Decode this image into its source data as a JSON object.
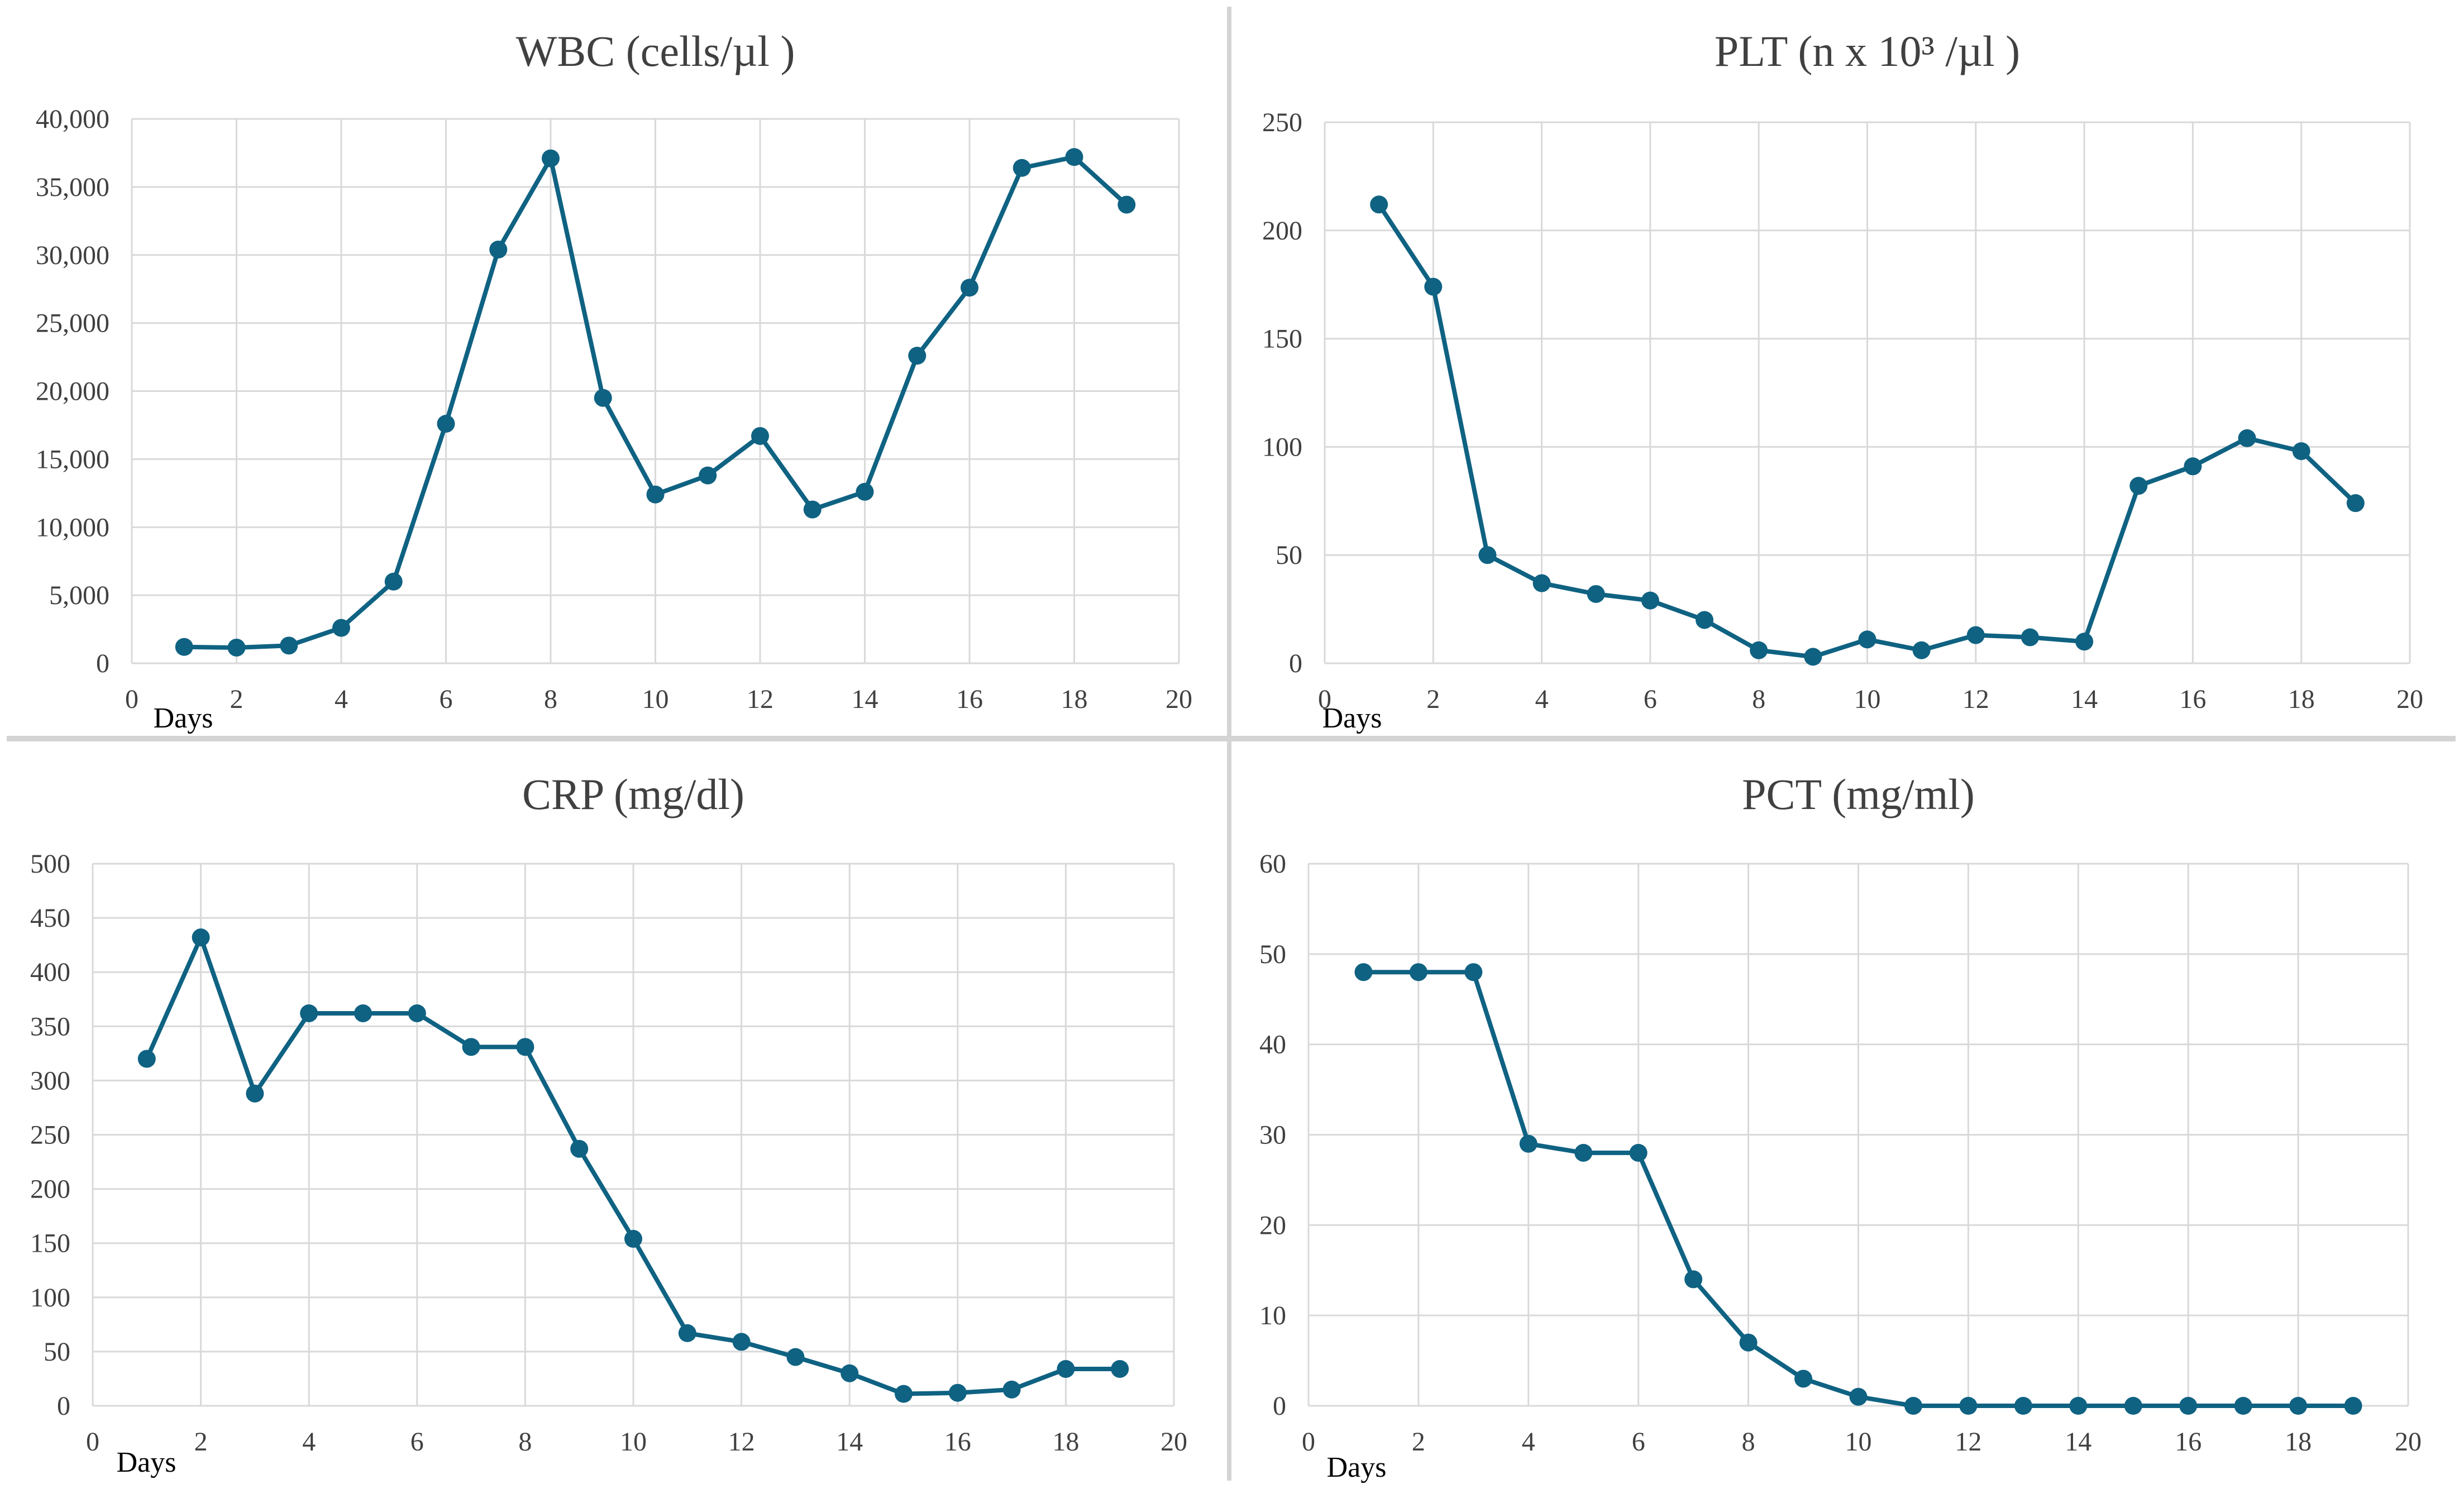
{
  "chart_data": [
    {
      "type": "line",
      "title": "WBC (cells/µl )",
      "xlabel": "Days",
      "ylabel": "",
      "xlim": [
        0,
        20
      ],
      "ylim": [
        0,
        40000
      ],
      "x_ticks": [
        "0",
        "2",
        "4",
        "6",
        "8",
        "10",
        "12",
        "14",
        "16",
        "18",
        "20"
      ],
      "y_ticks": [
        "0",
        "5,000",
        "10,000",
        "15,000",
        "20,000",
        "25,000",
        "30,000",
        "35,000",
        "40,000"
      ],
      "grid": true,
      "series": [
        {
          "x": [
            1,
            2,
            3,
            4,
            5,
            6,
            7,
            8,
            9,
            10,
            11,
            12,
            13,
            14,
            15,
            16,
            17,
            18,
            19
          ],
          "y": [
            1200,
            1150,
            1300,
            2600,
            6000,
            17600,
            30400,
            37100,
            19500,
            12400,
            13800,
            16700,
            11300,
            12600,
            22600,
            27600,
            36400,
            37200,
            33700
          ]
        }
      ],
      "colors": {
        "line": "#0f6282",
        "grid": "#d9d9d9"
      }
    },
    {
      "type": "line",
      "title": "PLT (n x 10³ /µl )",
      "xlabel": "Days",
      "ylabel": "",
      "xlim": [
        0,
        20
      ],
      "ylim": [
        0,
        250
      ],
      "x_ticks": [
        "0",
        "2",
        "4",
        "6",
        "8",
        "10",
        "12",
        "14",
        "16",
        "18",
        "20"
      ],
      "y_ticks": [
        "0",
        "50",
        "100",
        "150",
        "200",
        "250"
      ],
      "grid": true,
      "series": [
        {
          "x": [
            1,
            2,
            3,
            4,
            5,
            6,
            7,
            8,
            9,
            10,
            11,
            12,
            13,
            14,
            15,
            16,
            17,
            18,
            19
          ],
          "y": [
            212,
            174,
            50,
            37,
            32,
            29,
            20,
            6,
            3,
            11,
            6,
            13,
            12,
            10,
            82,
            91,
            104,
            98,
            74
          ]
        }
      ],
      "colors": {
        "line": "#0f6282",
        "grid": "#d9d9d9"
      }
    },
    {
      "type": "line",
      "title": "CRP (mg/dl)",
      "xlabel": "Days",
      "ylabel": "",
      "xlim": [
        0,
        20
      ],
      "ylim": [
        0,
        500
      ],
      "x_ticks": [
        "0",
        "2",
        "4",
        "6",
        "8",
        "10",
        "12",
        "14",
        "16",
        "18",
        "20"
      ],
      "y_ticks": [
        "0",
        "50",
        "100",
        "150",
        "200",
        "250",
        "300",
        "350",
        "400",
        "450",
        "500"
      ],
      "grid": true,
      "series": [
        {
          "x": [
            1,
            2,
            3,
            4,
            5,
            6,
            7,
            8,
            9,
            10,
            11,
            12,
            13,
            14,
            15,
            16,
            17,
            18,
            19
          ],
          "y": [
            320,
            432,
            288,
            362,
            362,
            362,
            331,
            331,
            237,
            154,
            67,
            59,
            45,
            30,
            11,
            12,
            15,
            34,
            34
          ]
        }
      ],
      "colors": {
        "line": "#0f6282",
        "grid": "#d9d9d9"
      }
    },
    {
      "type": "line",
      "title": "PCT (mg/ml)",
      "xlabel": "Days",
      "ylabel": "",
      "xlim": [
        0,
        20
      ],
      "ylim": [
        0,
        60
      ],
      "x_ticks": [
        "0",
        "2",
        "4",
        "6",
        "8",
        "10",
        "12",
        "14",
        "16",
        "18",
        "20"
      ],
      "y_ticks": [
        "0",
        "10",
        "20",
        "30",
        "40",
        "50",
        "60"
      ],
      "grid": true,
      "series": [
        {
          "x": [
            1,
            2,
            3,
            4,
            5,
            6,
            7,
            8,
            9,
            10,
            11,
            12,
            13,
            14,
            15,
            16,
            17,
            18,
            19
          ],
          "y": [
            48,
            48,
            48,
            29,
            28,
            28,
            14,
            7,
            3,
            1,
            0,
            0,
            0,
            0,
            0,
            0,
            0,
            0,
            0
          ]
        }
      ],
      "colors": {
        "line": "#0f6282",
        "grid": "#d9d9d9"
      }
    }
  ]
}
